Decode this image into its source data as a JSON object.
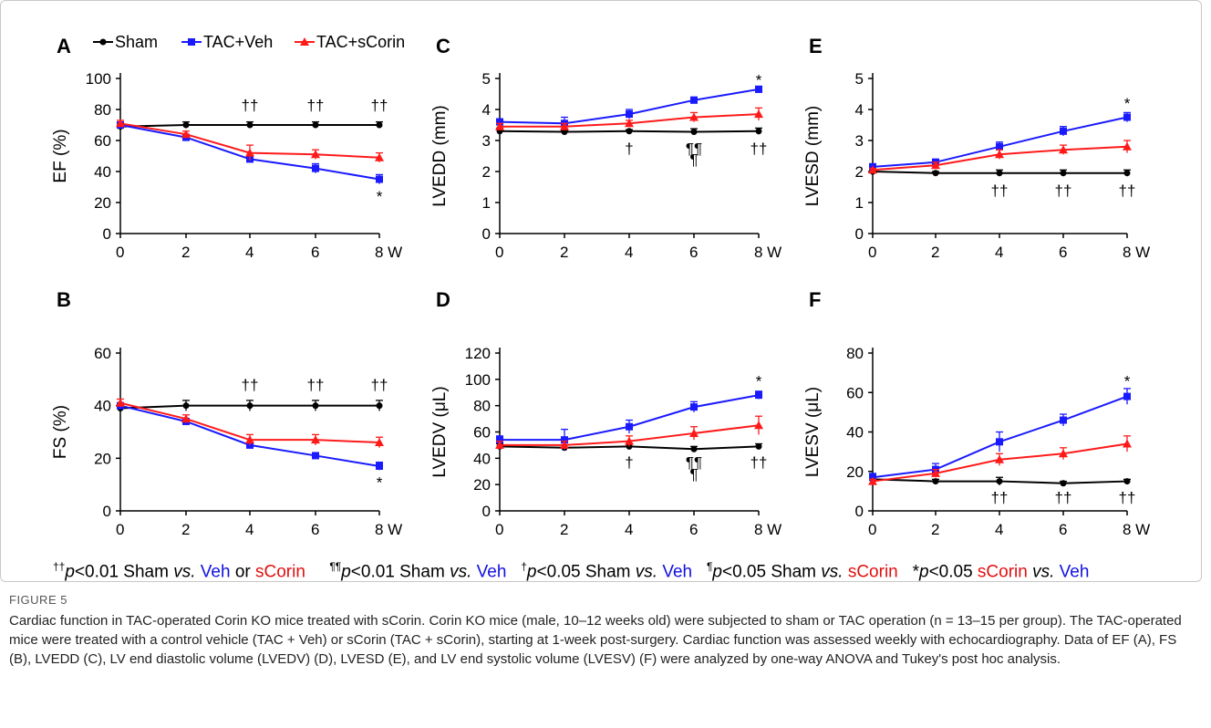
{
  "chart_data": [
    {
      "panel": "A",
      "type": "line",
      "ylabel": "EF (%)",
      "x": [
        0,
        2,
        4,
        6,
        8
      ],
      "x_ticks": [
        "0",
        "2",
        "4",
        "6",
        "8 W"
      ],
      "ylim": [
        0,
        100
      ],
      "y_ticks": [
        0,
        20,
        40,
        60,
        80,
        100
      ],
      "series": [
        {
          "name": "Sham",
          "color": "#000000",
          "marker": "circle",
          "values": [
            69,
            70,
            70,
            70,
            70
          ],
          "errors": [
            2,
            2,
            2,
            2,
            2
          ]
        },
        {
          "name": "TAC+Veh",
          "color": "#1a1aff",
          "marker": "square",
          "values": [
            70,
            62,
            48,
            42,
            35
          ],
          "errors": [
            2,
            2,
            2,
            3,
            3
          ]
        },
        {
          "name": "TAC+sCorin",
          "color": "#ff1a1a",
          "marker": "triangle",
          "values": [
            71,
            64,
            52,
            51,
            49
          ],
          "errors": [
            2,
            2,
            5,
            3,
            3
          ]
        }
      ],
      "annotations": [
        {
          "x": 4,
          "y": 83,
          "text": "††"
        },
        {
          "x": 6,
          "y": 83,
          "text": "††"
        },
        {
          "x": 8,
          "y": 83,
          "text": "††"
        },
        {
          "x": 8,
          "y": 24,
          "text": "*"
        }
      ]
    },
    {
      "panel": "C",
      "type": "line",
      "ylabel": "LVEDD (mm)",
      "x": [
        0,
        2,
        4,
        6,
        8
      ],
      "x_ticks": [
        "0",
        "2",
        "4",
        "6",
        "8 W"
      ],
      "ylim": [
        0,
        5
      ],
      "y_ticks": [
        0,
        1,
        2,
        3,
        4,
        5
      ],
      "series": [
        {
          "name": "Sham",
          "color": "#000000",
          "marker": "circle",
          "values": [
            3.3,
            3.28,
            3.3,
            3.28,
            3.3
          ],
          "errors": [
            0.1,
            0.05,
            0.05,
            0.1,
            0.1
          ]
        },
        {
          "name": "TAC+Veh",
          "color": "#1a1aff",
          "marker": "square",
          "values": [
            3.6,
            3.55,
            3.85,
            4.3,
            4.65
          ],
          "errors": [
            0.1,
            0.2,
            0.15,
            0.1,
            0.1
          ]
        },
        {
          "name": "TAC+sCorin",
          "color": "#ff1a1a",
          "marker": "triangle",
          "values": [
            3.45,
            3.45,
            3.55,
            3.75,
            3.85
          ],
          "errors": [
            0.1,
            0.1,
            0.1,
            0.15,
            0.2
          ]
        }
      ],
      "annotations": [
        {
          "x": 8,
          "y": 4.95,
          "text": "*"
        },
        {
          "x": 4,
          "y": 2.75,
          "text": "†"
        },
        {
          "x": 6,
          "y": 2.75,
          "text": "¶¶"
        },
        {
          "x": 6,
          "y": 2.4,
          "text": "¶"
        },
        {
          "x": 8,
          "y": 2.75,
          "text": "††"
        }
      ]
    },
    {
      "panel": "E",
      "type": "line",
      "ylabel": "LVESD (mm)",
      "x": [
        0,
        2,
        4,
        6,
        8
      ],
      "x_ticks": [
        "0",
        "2",
        "4",
        "6",
        "8 W"
      ],
      "ylim": [
        0,
        5
      ],
      "y_ticks": [
        0,
        1,
        2,
        3,
        4,
        5
      ],
      "series": [
        {
          "name": "Sham",
          "color": "#000000",
          "marker": "circle",
          "values": [
            2.0,
            1.95,
            1.95,
            1.95,
            1.95
          ],
          "errors": [
            0.05,
            0.05,
            0.1,
            0.1,
            0.1
          ]
        },
        {
          "name": "TAC+Veh",
          "color": "#1a1aff",
          "marker": "square",
          "values": [
            2.15,
            2.3,
            2.8,
            3.3,
            3.75
          ],
          "errors": [
            0.1,
            0.1,
            0.15,
            0.15,
            0.15
          ]
        },
        {
          "name": "TAC+sCorin",
          "color": "#ff1a1a",
          "marker": "triangle",
          "values": [
            2.05,
            2.2,
            2.55,
            2.7,
            2.8
          ],
          "errors": [
            0.05,
            0.1,
            0.15,
            0.15,
            0.2
          ]
        }
      ],
      "annotations": [
        {
          "x": 8,
          "y": 4.2,
          "text": "*"
        },
        {
          "x": 4,
          "y": 1.4,
          "text": "††"
        },
        {
          "x": 6,
          "y": 1.4,
          "text": "††"
        },
        {
          "x": 8,
          "y": 1.4,
          "text": "††"
        }
      ]
    },
    {
      "panel": "B",
      "type": "line",
      "ylabel": "FS (%)",
      "x": [
        0,
        2,
        4,
        6,
        8
      ],
      "x_ticks": [
        "0",
        "2",
        "4",
        "6",
        "8 W"
      ],
      "ylim": [
        0,
        60
      ],
      "y_ticks": [
        0,
        20,
        40,
        60
      ],
      "series": [
        {
          "name": "Sham",
          "color": "#000000",
          "marker": "circle",
          "values": [
            39,
            40,
            40,
            40,
            40
          ],
          "errors": [
            1,
            2,
            2,
            2,
            2
          ]
        },
        {
          "name": "TAC+Veh",
          "color": "#1a1aff",
          "marker": "square",
          "values": [
            40,
            34,
            25,
            21,
            17
          ],
          "errors": [
            1,
            1,
            1,
            1,
            1.5
          ]
        },
        {
          "name": "TAC+sCorin",
          "color": "#ff1a1a",
          "marker": "triangle",
          "values": [
            41,
            35,
            27,
            27,
            26
          ],
          "errors": [
            1.5,
            1.5,
            2,
            2,
            2
          ]
        }
      ],
      "annotations": [
        {
          "x": 4,
          "y": 48,
          "text": "††"
        },
        {
          "x": 6,
          "y": 48,
          "text": "††"
        },
        {
          "x": 8,
          "y": 48,
          "text": "††"
        },
        {
          "x": 8,
          "y": 11,
          "text": "*"
        }
      ]
    },
    {
      "panel": "D",
      "type": "line",
      "ylabel": "LVEDV (μL)",
      "x": [
        0,
        2,
        4,
        6,
        8
      ],
      "x_ticks": [
        "0",
        "2",
        "4",
        "6",
        "8 W"
      ],
      "ylim": [
        0,
        120
      ],
      "y_ticks": [
        0,
        20,
        40,
        60,
        80,
        100,
        120
      ],
      "series": [
        {
          "name": "Sham",
          "color": "#000000",
          "marker": "circle",
          "values": [
            49,
            48,
            49,
            47,
            49
          ],
          "errors": [
            2,
            2,
            2,
            2,
            2
          ]
        },
        {
          "name": "TAC+Veh",
          "color": "#1a1aff",
          "marker": "square",
          "values": [
            54,
            54,
            64,
            79,
            88
          ],
          "errors": [
            3,
            8,
            5,
            4,
            3
          ]
        },
        {
          "name": "TAC+sCorin",
          "color": "#ff1a1a",
          "marker": "triangle",
          "values": [
            50,
            50,
            53,
            59,
            65
          ],
          "errors": [
            3,
            3,
            4,
            5,
            7
          ]
        }
      ],
      "annotations": [
        {
          "x": 8,
          "y": 99,
          "text": "*"
        },
        {
          "x": 4,
          "y": 37,
          "text": "†"
        },
        {
          "x": 6,
          "y": 37,
          "text": "¶¶"
        },
        {
          "x": 6,
          "y": 28,
          "text": "¶"
        },
        {
          "x": 8,
          "y": 37,
          "text": "††"
        }
      ]
    },
    {
      "panel": "F",
      "type": "line",
      "ylabel": "LVESV (μL)",
      "x": [
        0,
        2,
        4,
        6,
        8
      ],
      "x_ticks": [
        "0",
        "2",
        "4",
        "6",
        "8 W"
      ],
      "ylim": [
        0,
        80
      ],
      "y_ticks": [
        0,
        20,
        40,
        60,
        80
      ],
      "series": [
        {
          "name": "Sham",
          "color": "#000000",
          "marker": "circle",
          "values": [
            16,
            15,
            15,
            14,
            15
          ],
          "errors": [
            1,
            1,
            2,
            1,
            1
          ]
        },
        {
          "name": "TAC+Veh",
          "color": "#1a1aff",
          "marker": "square",
          "values": [
            17,
            21,
            35,
            46,
            58
          ],
          "errors": [
            2,
            3,
            5,
            3,
            4
          ]
        },
        {
          "name": "TAC+sCorin",
          "color": "#ff1a1a",
          "marker": "triangle",
          "values": [
            15,
            19,
            26,
            29,
            34
          ],
          "errors": [
            1,
            2,
            3,
            3,
            4
          ]
        }
      ],
      "annotations": [
        {
          "x": 8,
          "y": 66,
          "text": "*"
        },
        {
          "x": 4,
          "y": 7,
          "text": "††"
        },
        {
          "x": 6,
          "y": 7,
          "text": "††"
        },
        {
          "x": 8,
          "y": 7,
          "text": "††"
        }
      ]
    }
  ],
  "footnote": {
    "p1_sym": "††",
    "p1_text": "p<0.01 Sham vs. Veh or sCorin",
    "p1_a": "p",
    "p1_b": "<0.01 Sham ",
    "p1_c": "vs.",
    "p1_veh": "Veh",
    "p1_or": " or ",
    "p1_scorin": "sCorin",
    "p2_sym": "¶¶",
    "p2_a": "p",
    "p2_b": "<0.01 Sham ",
    "p2_c": "vs.",
    "p2_veh": "Veh",
    "p3_sym": "†",
    "p3_a": "p",
    "p3_b": "<0.05 Sham ",
    "p3_c": "vs.",
    "p3_veh": "Veh",
    "p4_sym": "¶",
    "p4_a": "p",
    "p4_b": "<0.05 Sham ",
    "p4_c": "vs.",
    "p4_scorin": "sCorin",
    "p5_sym": "*",
    "p5_a": "p",
    "p5_b": "<0.05 ",
    "p5_scorin": "sCorin",
    "p5_c": " vs.",
    "p5_veh": "Veh"
  },
  "caption": {
    "label": "FIGURE 5",
    "text": "Cardiac function in TAC-operated Corin KO mice treated with sCorin. Corin KO mice (male, 10–12 weeks old) were subjected to sham or TAC operation (n = 13–15 per group). The TAC-operated mice were treated with a control vehicle (TAC + Veh) or sCorin (TAC + sCorin), starting at 1-week post-surgery. Cardiac function was assessed weekly with echocardiography. Data of EF (A), FS (B), LVEDD (C), LV end diastolic volume (LVEDV) (D), LVESD (E), and LV end systolic volume (LVESV) (F) were analyzed by one-way ANOVA and Tukey's post hoc analysis."
  }
}
